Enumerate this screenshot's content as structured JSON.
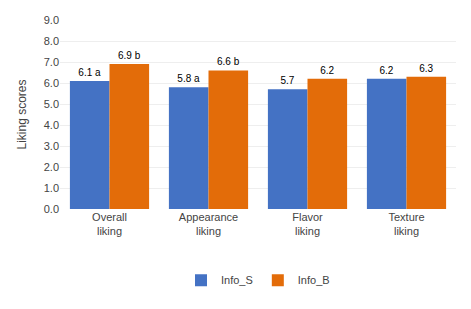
{
  "chart_data": {
    "type": "bar",
    "categories": [
      "Overall\nliking",
      "Appearance\nliking",
      "Flavor\nliking",
      "Texture\nliking"
    ],
    "series": [
      {
        "name": "Info_S",
        "color": "#4472C4",
        "values": [
          6.1,
          5.8,
          5.7,
          6.2
        ],
        "value_labels": [
          "6.1 a",
          "5.8 a",
          "5.7",
          "6.2"
        ]
      },
      {
        "name": "Info_B",
        "color": "#E36C09",
        "values": [
          6.9,
          6.6,
          6.2,
          6.3
        ],
        "value_labels": [
          "6.9 b",
          "6.6 b",
          "6.2",
          "6.3"
        ]
      }
    ],
    "ylabel": "Liking scores",
    "ylim": [
      0.0,
      9.0
    ],
    "yticks": [
      {
        "value": 0.0,
        "label": "0.0"
      },
      {
        "value": 1.0,
        "label": "1.0"
      },
      {
        "value": 2.0,
        "label": "2.0"
      },
      {
        "value": 3.0,
        "label": "3.0"
      },
      {
        "value": 4.0,
        "label": "4.0"
      },
      {
        "value": 5.0,
        "label": "5.0"
      },
      {
        "value": 6.0,
        "label": "6.0"
      },
      {
        "value": 7.0,
        "label": "7.0"
      },
      {
        "value": 8.0,
        "label": "8.0"
      },
      {
        "value": 9.0,
        "label": "9.0"
      }
    ],
    "grid": true,
    "legend": "bottom",
    "data_labels": true
  }
}
